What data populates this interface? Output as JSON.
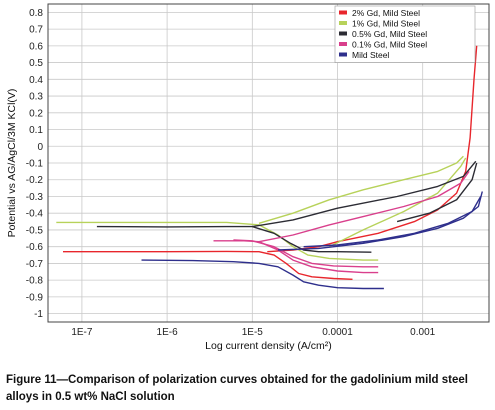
{
  "chart_data": {
    "type": "line",
    "xscale": "log",
    "xlabel": "Log current density (A/cm²)",
    "ylabel": "Potential vs AG/AgCl/3M KCl(V)",
    "xlim": [
      4e-08,
      0.006
    ],
    "ylim": [
      -1.05,
      0.85
    ],
    "x_ticks": [
      1e-07,
      1e-06,
      1e-05,
      0.0001,
      0.001
    ],
    "x_tick_labels": [
      "1E-7",
      "1E-6",
      "1E-5",
      "0.0001",
      "0.001"
    ],
    "y_ticks": [
      0.8,
      0.7,
      0.6,
      0.5,
      0.4,
      0.3,
      0.2,
      0.1,
      0,
      -0.1,
      -0.2,
      -0.3,
      -0.4,
      -0.5,
      -0.6,
      -0.7,
      -0.8,
      -0.9,
      -1
    ],
    "y_tick_labels": [
      "0.8",
      "0.7",
      "0.6",
      "0.5",
      "0.4",
      "0.3",
      "0.2",
      "0.1",
      "0",
      "-0.1",
      "-0.2",
      "-0.3",
      "-0.4",
      "-0.5",
      "-0.6",
      "-0.7",
      "-0.8",
      "-0.9",
      "-1"
    ],
    "grid": true,
    "legend_position": "top-right",
    "series": [
      {
        "name": "2% Gd, Mild Steel",
        "color": "#e8262c",
        "segments": [
          [
            [
              1.5e-05,
              -0.63
            ],
            [
              3e-05,
              -0.62
            ],
            [
              6e-05,
              -0.6
            ],
            [
              0.0001,
              -0.57
            ],
            [
              0.0003,
              -0.52
            ],
            [
              0.0008,
              -0.45
            ],
            [
              0.0015,
              -0.38
            ],
            [
              0.0025,
              -0.28
            ],
            [
              0.0032,
              -0.15
            ],
            [
              0.0036,
              0.05
            ],
            [
              0.004,
              0.4
            ],
            [
              0.0043,
              0.6
            ]
          ],
          [
            [
              6e-08,
              -0.63
            ],
            [
              1e-06,
              -0.63
            ],
            [
              5e-06,
              -0.628
            ],
            [
              1.2e-05,
              -0.63
            ],
            [
              1.8e-05,
              -0.65
            ],
            [
              2.5e-05,
              -0.7
            ],
            [
              3.5e-05,
              -0.76
            ],
            [
              5e-05,
              -0.78
            ],
            [
              9e-05,
              -0.79
            ],
            [
              0.00015,
              -0.795
            ]
          ]
        ]
      },
      {
        "name": "1% Gd, Mild Steel",
        "color": "#b7d25a",
        "segments": [
          [
            [
              1.2e-05,
              -0.46
            ],
            [
              3e-05,
              -0.4
            ],
            [
              8e-05,
              -0.32
            ],
            [
              0.0002,
              -0.26
            ],
            [
              0.0006,
              -0.2
            ],
            [
              0.0015,
              -0.15
            ],
            [
              0.0025,
              -0.1
            ],
            [
              0.003,
              -0.06
            ]
          ],
          [
            [
              5e-08,
              -0.455
            ],
            [
              1e-06,
              -0.455
            ],
            [
              5e-06,
              -0.455
            ],
            [
              1.2e-05,
              -0.47
            ],
            [
              2e-05,
              -0.53
            ],
            [
              3e-05,
              -0.6
            ],
            [
              4.5e-05,
              -0.65
            ],
            [
              8e-05,
              -0.67
            ],
            [
              0.0002,
              -0.68
            ],
            [
              0.0003,
              -0.68
            ]
          ],
          [
            [
              8e-05,
              -0.6
            ],
            [
              0.0002,
              -0.5
            ],
            [
              0.0006,
              -0.39
            ],
            [
              0.0015,
              -0.28
            ],
            [
              0.0028,
              -0.12
            ],
            [
              0.0032,
              -0.07
            ]
          ]
        ]
      },
      {
        "name": "0.5% Gd, Mild Steel",
        "color": "#2c2c34",
        "segments": [
          [
            [
              1e-05,
              -0.48
            ],
            [
              3e-05,
              -0.44
            ],
            [
              0.0001,
              -0.37
            ],
            [
              0.0005,
              -0.3
            ],
            [
              0.0015,
              -0.24
            ],
            [
              0.003,
              -0.18
            ],
            [
              0.0042,
              -0.09
            ]
          ],
          [
            [
              1.5e-07,
              -0.48
            ],
            [
              1e-06,
              -0.482
            ],
            [
              5e-06,
              -0.48
            ],
            [
              1e-05,
              -0.48
            ],
            [
              1.8e-05,
              -0.52
            ],
            [
              2.8e-05,
              -0.58
            ],
            [
              4e-05,
              -0.62
            ],
            [
              6e-05,
              -0.63
            ],
            [
              0.0001,
              -0.63
            ],
            [
              0.00025,
              -0.633
            ]
          ],
          [
            [
              0.0005,
              -0.45
            ],
            [
              0.0012,
              -0.4
            ],
            [
              0.0025,
              -0.32
            ],
            [
              0.0038,
              -0.2
            ],
            [
              0.0043,
              -0.1
            ]
          ]
        ]
      },
      {
        "name": "0.1% Gd, Mild Steel",
        "color": "#d93f8c",
        "segments": [
          [
            [
              1.2e-05,
              -0.57
            ],
            [
              3e-05,
              -0.53
            ],
            [
              8e-05,
              -0.47
            ],
            [
              0.0002,
              -0.42
            ],
            [
              0.0006,
              -0.36
            ],
            [
              0.0015,
              -0.3
            ],
            [
              0.0028,
              -0.22
            ],
            [
              0.0035,
              -0.15
            ]
          ],
          [
            [
              3.5e-06,
              -0.565
            ],
            [
              8e-06,
              -0.565
            ],
            [
              1.2e-05,
              -0.57
            ],
            [
              2e-05,
              -0.62
            ],
            [
              3e-05,
              -0.68
            ],
            [
              5e-05,
              -0.72
            ],
            [
              0.0001,
              -0.745
            ],
            [
              0.0002,
              -0.755
            ],
            [
              0.0003,
              -0.755
            ]
          ],
          [
            [
              6e-06,
              -0.56
            ],
            [
              1e-05,
              -0.565
            ],
            [
              1.8e-05,
              -0.6
            ],
            [
              3e-05,
              -0.66
            ],
            [
              5e-05,
              -0.7
            ],
            [
              9e-05,
              -0.715
            ],
            [
              0.0002,
              -0.72
            ],
            [
              0.0003,
              -0.72
            ]
          ]
        ]
      },
      {
        "name": "Mild Steel",
        "color": "#2e2f8c",
        "segments": [
          [
            [
              2e-05,
              -0.62
            ],
            [
              6e-05,
              -0.61
            ],
            [
              0.0002,
              -0.58
            ],
            [
              0.0006,
              -0.54
            ],
            [
              0.0015,
              -0.49
            ],
            [
              0.003,
              -0.43
            ],
            [
              0.0045,
              -0.36
            ],
            [
              0.005,
              -0.27
            ]
          ],
          [
            [
              5e-07,
              -0.68
            ],
            [
              2e-06,
              -0.683
            ],
            [
              6e-06,
              -0.69
            ],
            [
              1.2e-05,
              -0.7
            ],
            [
              2e-05,
              -0.72
            ],
            [
              3e-05,
              -0.77
            ],
            [
              4e-05,
              -0.81
            ],
            [
              6e-05,
              -0.83
            ],
            [
              0.0001,
              -0.845
            ],
            [
              0.0002,
              -0.85
            ],
            [
              0.00035,
              -0.85
            ]
          ],
          [
            [
              4e-05,
              -0.6
            ],
            [
              0.0001,
              -0.59
            ],
            [
              0.0003,
              -0.56
            ],
            [
              0.0008,
              -0.52
            ],
            [
              0.002,
              -0.46
            ],
            [
              0.0038,
              -0.39
            ],
            [
              0.0048,
              -0.3
            ]
          ]
        ]
      }
    ]
  },
  "caption": "Figure 11—Comparison of polarization curves obtained for the gadolinium mild steel alloys in 0.5 wt% NaCl solution"
}
